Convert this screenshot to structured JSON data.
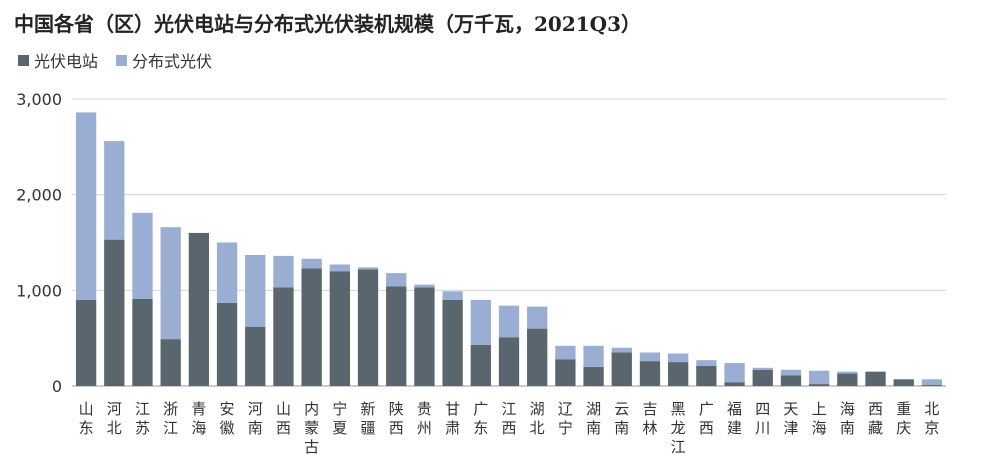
{
  "chart_data": {
    "type": "bar",
    "stacked": true,
    "title": "中国各省（区）光伏电站与分布式光伏装机规模（万千瓦，2021Q3）",
    "xlabel": "",
    "ylabel": "",
    "ylim": [
      0,
      3000
    ],
    "yticks": [
      "0",
      "1,000",
      "2,000",
      "3,000"
    ],
    "ytick_values": [
      0,
      1000,
      2000,
      3000
    ],
    "grid": true,
    "legend_position": "top-left",
    "categories": [
      "山东",
      "河北",
      "江苏",
      "浙江",
      "青海",
      "安徽",
      "河南",
      "山西",
      "内蒙古",
      "宁夏",
      "新疆",
      "陕西",
      "贵州",
      "甘肃",
      "广东",
      "江西",
      "湖北",
      "辽宁",
      "湖南",
      "云南",
      "吉林",
      "黑龙江",
      "广西",
      "福建",
      "四川",
      "天津",
      "上海",
      "海南",
      "西藏",
      "重庆",
      "北京"
    ],
    "series": [
      {
        "name": "光伏电站",
        "color": "#5a666e",
        "values": [
          900,
          1530,
          910,
          490,
          1600,
          870,
          620,
          1030,
          1230,
          1200,
          1220,
          1040,
          1030,
          900,
          430,
          510,
          600,
          280,
          200,
          350,
          260,
          250,
          210,
          40,
          170,
          110,
          20,
          130,
          150,
          70,
          10
        ]
      },
      {
        "name": "分布式光伏",
        "color": "#9aaed3",
        "values": [
          1960,
          1030,
          900,
          1170,
          0,
          630,
          750,
          330,
          100,
          70,
          20,
          140,
          30,
          90,
          470,
          330,
          230,
          140,
          220,
          50,
          90,
          90,
          60,
          200,
          20,
          60,
          140,
          20,
          0,
          0,
          60
        ]
      }
    ]
  }
}
